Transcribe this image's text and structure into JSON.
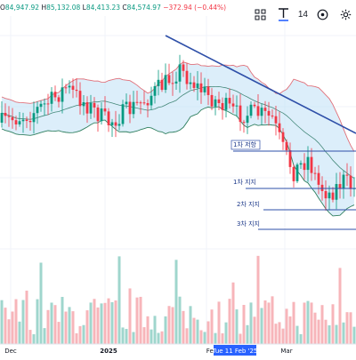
{
  "ohlc": {
    "open_label": "O",
    "open": "84,947.92",
    "high_label": "H",
    "high": "85,132.08",
    "low_label": "L",
    "low": "84,413.23",
    "close_label": "C",
    "close": "84,574.97",
    "change": "−372.94 (−0.44%)"
  },
  "toolbar": {
    "interval": "14",
    "icons": [
      "grid-icon",
      "text-icon",
      "alert-icon",
      "settings-icon"
    ]
  },
  "colors": {
    "up": "#089981",
    "down": "#f23645",
    "band_fill": "#bfe0f5",
    "band_line": "#e0707a",
    "basis": "#2f7f5f",
    "trend": "#2e4fa8",
    "level": "#2e4fa8",
    "vol_up": "#9fd6cd",
    "vol_down": "#f7b5ba",
    "date_highlight": "#2962ff"
  },
  "chart_data": {
    "type": "candlestick",
    "title": "",
    "xlabel": "",
    "ylabel": "",
    "x_ticks": [
      "Dec",
      "2025",
      "Feb",
      "Tue 11 Feb '25",
      "Mar"
    ],
    "highlighted_x_tick": "Tue 11 Feb '25",
    "overlays": [
      "bollinger-bands",
      "volume"
    ],
    "annotations": [
      {
        "label": "1차 저항",
        "kind": "resistance"
      },
      {
        "label": "1차 지지",
        "kind": "support"
      },
      {
        "label": "2차 지지",
        "kind": "support"
      },
      {
        "label": "3차 지지",
        "kind": "support"
      }
    ],
    "grid": true
  }
}
